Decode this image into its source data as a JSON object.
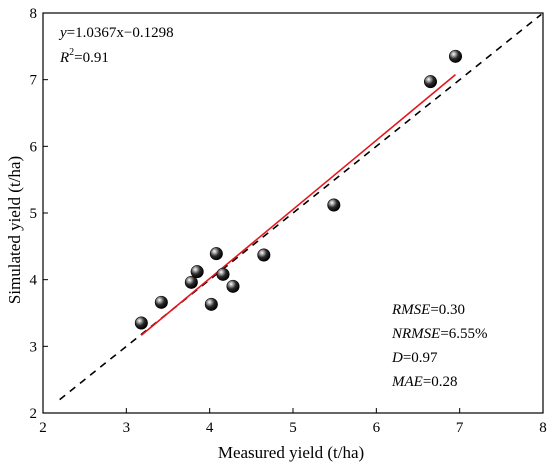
{
  "chart_data": {
    "type": "scatter",
    "xlabel": "Measured yield (t/ha)",
    "ylabel": "Simulated yield (t/ha)",
    "xlim": [
      2,
      8
    ],
    "ylim": [
      2,
      8
    ],
    "xticks": [
      2,
      3,
      4,
      5,
      6,
      7,
      8
    ],
    "yticks": [
      2,
      3,
      4,
      5,
      6,
      7,
      8
    ],
    "tick_labels_x": [
      "2",
      "3",
      "4",
      "5",
      "6",
      "7",
      "8"
    ],
    "tick_labels_y": [
      "2",
      "3",
      "4",
      "5",
      "6",
      "7",
      "8"
    ],
    "grid": false,
    "points": [
      {
        "x": 3.18,
        "y": 3.35
      },
      {
        "x": 3.42,
        "y": 3.66
      },
      {
        "x": 3.78,
        "y": 3.96
      },
      {
        "x": 3.85,
        "y": 4.12
      },
      {
        "x": 4.02,
        "y": 3.63
      },
      {
        "x": 4.08,
        "y": 4.39
      },
      {
        "x": 4.16,
        "y": 4.08
      },
      {
        "x": 4.28,
        "y": 3.9
      },
      {
        "x": 4.65,
        "y": 4.37
      },
      {
        "x": 5.49,
        "y": 5.12
      },
      {
        "x": 6.65,
        "y": 6.97
      },
      {
        "x": 6.95,
        "y": 7.35
      }
    ],
    "regression": {
      "slope": 1.0367,
      "intercept": -0.1298,
      "x_range": [
        3.18,
        6.95
      ],
      "color": "#e8141c"
    },
    "reference_line": {
      "slope": 1,
      "intercept": 0,
      "style": "dashed",
      "color": "#000000"
    },
    "point_color": "#000000"
  },
  "annotations": {
    "equation": {
      "y": "y",
      "rest": "=1.0367x−0.1298"
    },
    "r2": {
      "r": "R",
      "sup": "2",
      "rest": "=0.91"
    },
    "rmse": {
      "label": "RMSE",
      "value": "=0.30"
    },
    "nrmse": {
      "label": "NRMSE",
      "value": "=6.55%"
    },
    "d": {
      "label": "D",
      "value": "=0.97"
    },
    "mae": {
      "label": "MAE",
      "value": "=0.28"
    }
  }
}
